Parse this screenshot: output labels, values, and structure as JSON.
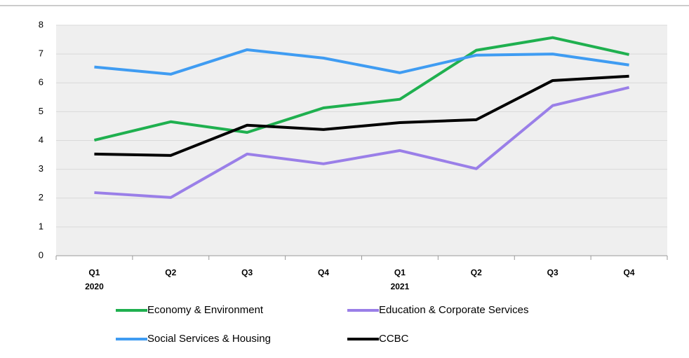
{
  "chart_data": {
    "type": "line",
    "categories": [
      "Q1",
      "Q2",
      "Q3",
      "Q4",
      "Q1",
      "Q2",
      "Q3",
      "Q4"
    ],
    "year_labels": [
      "2020",
      null,
      null,
      null,
      "2021",
      null,
      null,
      null
    ],
    "series": [
      {
        "name": "Economy & Environment",
        "color": "#1fb04f",
        "values": [
          4.01,
          4.65,
          4.28,
          5.13,
          5.43,
          7.13,
          7.57,
          6.98
        ]
      },
      {
        "name": "Education & Corporate Services",
        "color": "#9a7fe8",
        "values": [
          2.19,
          2.02,
          3.53,
          3.19,
          3.65,
          3.02,
          5.21,
          5.84
        ]
      },
      {
        "name": "Social Services & Housing",
        "color": "#3f9cf2",
        "values": [
          6.55,
          6.3,
          7.15,
          6.86,
          6.35,
          6.96,
          7.0,
          6.62
        ]
      },
      {
        "name": "CCBC",
        "color": "#000000",
        "values": [
          3.53,
          3.48,
          4.53,
          4.38,
          4.62,
          4.72,
          6.08,
          6.23
        ]
      }
    ],
    "ylim": [
      0,
      8
    ],
    "yticks": [
      0,
      1,
      2,
      3,
      4,
      5,
      6,
      7,
      8
    ],
    "grid": true
  }
}
